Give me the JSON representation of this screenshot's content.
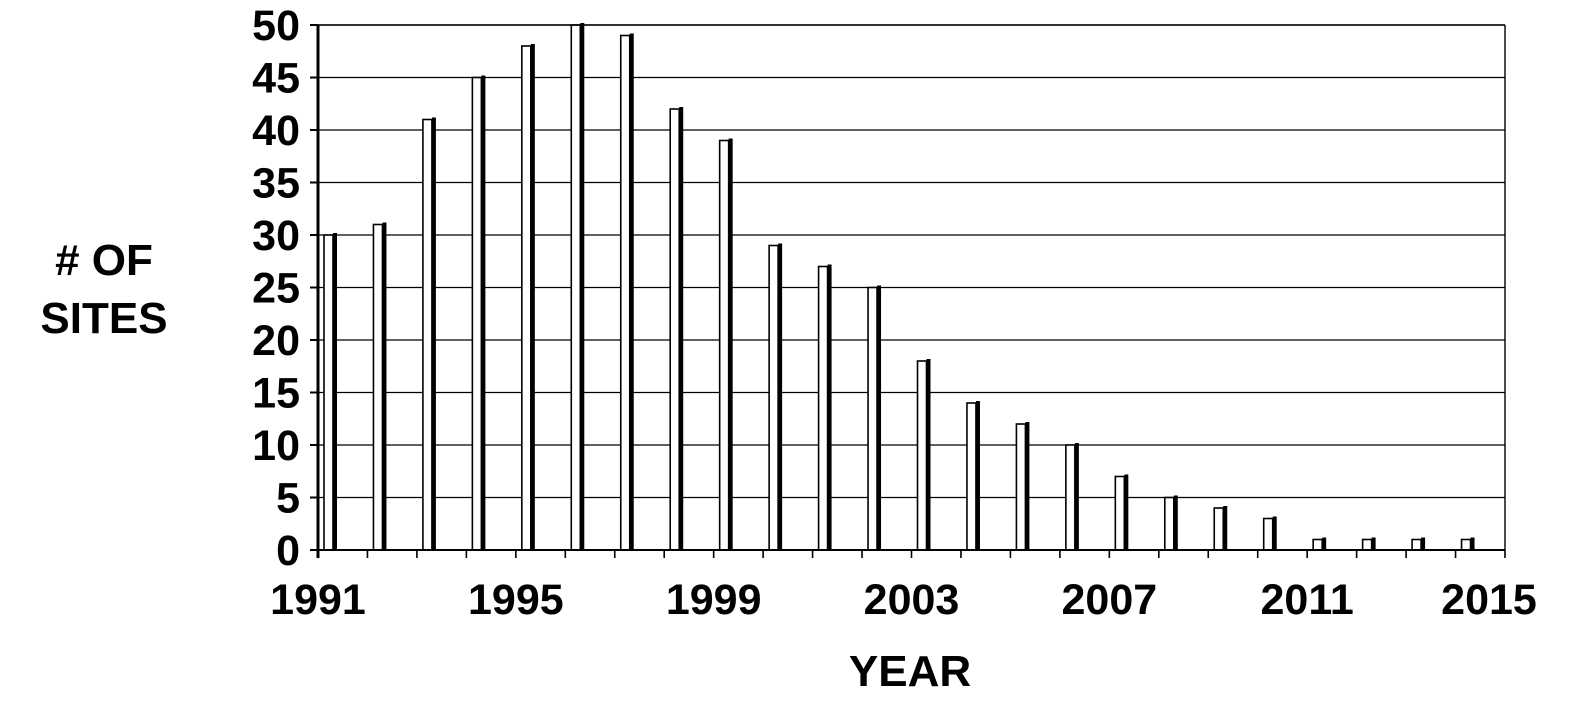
{
  "chart_data": {
    "type": "bar",
    "title": "",
    "xlabel": "YEAR",
    "ylabel_lines": [
      "# OF",
      "SITES"
    ],
    "x": [
      1991,
      1992,
      1993,
      1994,
      1995,
      1996,
      1997,
      1998,
      1999,
      2000,
      2001,
      2002,
      2003,
      2004,
      2005,
      2006,
      2007,
      2008,
      2009,
      2010,
      2011,
      2012,
      2013,
      2014
    ],
    "values": [
      30,
      31,
      41,
      45,
      48,
      50,
      49,
      42,
      39,
      29,
      27,
      25,
      18,
      14,
      12,
      10,
      7,
      5,
      4,
      3,
      1,
      1,
      1,
      1
    ],
    "xlim": [
      1991,
      2015
    ],
    "ylim": [
      0,
      50
    ],
    "yticks": [
      0,
      5,
      10,
      15,
      20,
      25,
      30,
      35,
      40,
      45,
      50
    ],
    "xticks": [
      1991,
      1995,
      1999,
      2003,
      2007,
      2011,
      2015
    ],
    "grid": "horizontal",
    "legend": "none",
    "colors": {
      "bar_fill": "#ffffff",
      "bar_shadow": "#000000",
      "axis": "#000000",
      "grid": "#000000"
    }
  }
}
